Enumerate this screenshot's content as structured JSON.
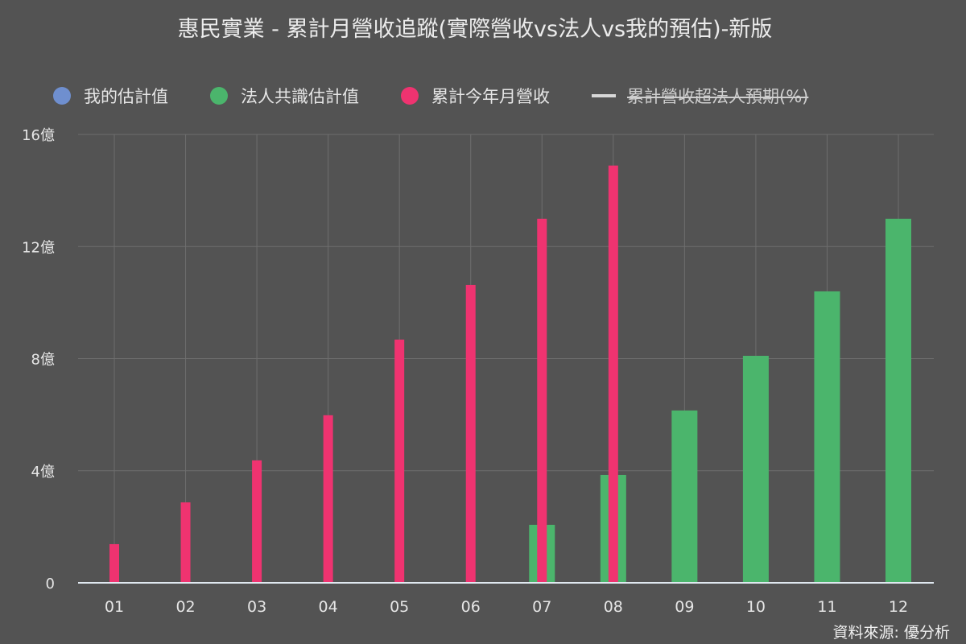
{
  "title": "惠民實業 - 累計月營收追蹤(實際營收vs法人vs我的預估)-新版",
  "legend": [
    {
      "label": "我的估計值",
      "color": "#6f8fcf",
      "type": "dot",
      "hidden": false
    },
    {
      "label": "法人共識估計值",
      "color": "#4bb56c",
      "type": "dot",
      "hidden": false
    },
    {
      "label": "累計今年月營收",
      "color": "#ef3370",
      "type": "dot",
      "hidden": false
    },
    {
      "label": "累計營收超法人預期(%)",
      "color": "#d8d8d8",
      "type": "line",
      "hidden": true
    }
  ],
  "source": "資料來源: 優分析",
  "chart_data": {
    "type": "bar",
    "title": "惠民實業 - 累計月營收追蹤(實際營收vs法人vs我的預估)-新版",
    "categories": [
      "01",
      "02",
      "03",
      "04",
      "05",
      "06",
      "07",
      "08",
      "09",
      "10",
      "11",
      "12"
    ],
    "ylim": [
      0,
      16
    ],
    "yticks": [
      0,
      4,
      8,
      12,
      16
    ],
    "ytick_labels": [
      "0",
      "4億",
      "8億",
      "12億",
      "16億"
    ],
    "yunit": "億",
    "grid": true,
    "legend_position": "top",
    "series": [
      {
        "name": "法人共識估計值",
        "color": "#4bb56c",
        "values": [
          null,
          null,
          null,
          null,
          null,
          null,
          2.07,
          3.85,
          6.15,
          8.1,
          10.4,
          12.99
        ]
      },
      {
        "name": "累計今年月營收",
        "color": "#ef3370",
        "values": [
          1.38,
          2.87,
          4.37,
          5.98,
          8.68,
          10.63,
          12.99,
          14.89,
          null,
          null,
          null,
          null
        ]
      }
    ]
  }
}
